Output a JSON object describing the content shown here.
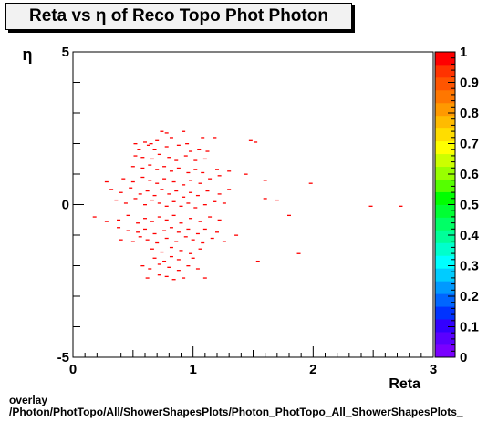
{
  "chart_data": {
    "type": "scatter",
    "title": "Reta vs  η of Reco Topo Phot Photon",
    "xlabel": "Reta",
    "ylabel": "η",
    "xlim": [
      0,
      3
    ],
    "ylim": [
      -5,
      5
    ],
    "x_ticks": [
      "0",
      "1",
      "2",
      "3"
    ],
    "y_ticks": [
      "-5",
      "0",
      "5"
    ],
    "colorbar": {
      "range": [
        0,
        1
      ],
      "ticks": [
        "0",
        "0.1",
        "0.2",
        "0.3",
        "0.4",
        "0.5",
        "0.6",
        "0.7",
        "0.8",
        "0.9",
        "1"
      ],
      "colors": [
        "#7a00ff",
        "#5a00ff",
        "#3300ff",
        "#0033ff",
        "#0066ff",
        "#0099ff",
        "#00ccff",
        "#00ffff",
        "#00ffcc",
        "#00ff99",
        "#00ff66",
        "#00ff33",
        "#00ff00",
        "#55ff00",
        "#99ff00",
        "#ccff00",
        "#ffff00",
        "#ffdd00",
        "#ffbb00",
        "#ff9900",
        "#ff7700",
        "#ff5500",
        "#ff3300",
        "#ff0000"
      ]
    },
    "point_color": "#ff0000",
    "points": [
      [
        0.52,
        2.0
      ],
      [
        0.6,
        2.05
      ],
      [
        0.65,
        2.0
      ],
      [
        0.7,
        2.1
      ],
      [
        0.74,
        2.4
      ],
      [
        0.78,
        2.35
      ],
      [
        0.82,
        2.2
      ],
      [
        0.92,
        2.4
      ],
      [
        0.95,
        2.0
      ],
      [
        1.08,
        2.2
      ],
      [
        1.18,
        2.2
      ],
      [
        1.48,
        2.1
      ],
      [
        1.52,
        2.05
      ],
      [
        0.55,
        1.8
      ],
      [
        0.63,
        1.95
      ],
      [
        0.68,
        1.8
      ],
      [
        0.78,
        1.9
      ],
      [
        0.88,
        1.95
      ],
      [
        0.98,
        1.75
      ],
      [
        1.05,
        1.8
      ],
      [
        1.12,
        1.75
      ],
      [
        0.52,
        1.6
      ],
      [
        0.58,
        1.55
      ],
      [
        0.66,
        1.5
      ],
      [
        0.72,
        1.65
      ],
      [
        0.8,
        1.55
      ],
      [
        0.86,
        1.45
      ],
      [
        0.94,
        1.6
      ],
      [
        1.02,
        1.45
      ],
      [
        1.1,
        1.5
      ],
      [
        0.5,
        1.25
      ],
      [
        0.58,
        1.2
      ],
      [
        0.64,
        1.3
      ],
      [
        0.7,
        1.15
      ],
      [
        0.76,
        1.25
      ],
      [
        0.82,
        1.1
      ],
      [
        0.88,
        1.2
      ],
      [
        0.96,
        1.05
      ],
      [
        1.02,
        1.15
      ],
      [
        1.08,
        1.05
      ],
      [
        1.2,
        1.15
      ],
      [
        1.3,
        1.1
      ],
      [
        0.42,
        0.85
      ],
      [
        0.5,
        0.75
      ],
      [
        0.58,
        0.9
      ],
      [
        0.64,
        0.8
      ],
      [
        0.7,
        0.7
      ],
      [
        0.76,
        0.85
      ],
      [
        0.84,
        0.75
      ],
      [
        0.92,
        0.65
      ],
      [
        0.98,
        0.8
      ],
      [
        1.06,
        0.7
      ],
      [
        1.14,
        0.85
      ],
      [
        1.22,
        0.95
      ],
      [
        1.44,
        1.0
      ],
      [
        1.6,
        0.8
      ],
      [
        1.98,
        0.7
      ],
      [
        0.28,
        0.75
      ],
      [
        0.32,
        0.5
      ],
      [
        0.4,
        0.4
      ],
      [
        0.48,
        0.55
      ],
      [
        0.56,
        0.35
      ],
      [
        0.62,
        0.45
      ],
      [
        0.68,
        0.3
      ],
      [
        0.74,
        0.5
      ],
      [
        0.8,
        0.35
      ],
      [
        0.86,
        0.45
      ],
      [
        0.92,
        0.25
      ],
      [
        0.98,
        0.4
      ],
      [
        1.04,
        0.3
      ],
      [
        1.12,
        0.45
      ],
      [
        1.22,
        0.35
      ],
      [
        1.3,
        0.5
      ],
      [
        0.36,
        0.15
      ],
      [
        0.44,
        0.05
      ],
      [
        0.52,
        0.2
      ],
      [
        0.6,
        0.0
      ],
      [
        0.66,
        0.15
      ],
      [
        0.72,
        0.05
      ],
      [
        0.78,
        -0.05
      ],
      [
        0.84,
        0.1
      ],
      [
        0.9,
        -0.05
      ],
      [
        0.96,
        0.05
      ],
      [
        1.02,
        -0.1
      ],
      [
        1.1,
        0.0
      ],
      [
        1.18,
        0.1
      ],
      [
        1.26,
        0.05
      ],
      [
        1.6,
        0.2
      ],
      [
        1.7,
        0.15
      ],
      [
        2.48,
        -0.05
      ],
      [
        2.73,
        -0.05
      ],
      [
        0.18,
        -0.4
      ],
      [
        0.28,
        -0.55
      ],
      [
        0.38,
        -0.5
      ],
      [
        0.46,
        -0.35
      ],
      [
        0.54,
        -0.6
      ],
      [
        0.6,
        -0.45
      ],
      [
        0.66,
        -0.55
      ],
      [
        0.72,
        -0.4
      ],
      [
        0.78,
        -0.5
      ],
      [
        0.84,
        -0.35
      ],
      [
        0.9,
        -0.6
      ],
      [
        0.98,
        -0.45
      ],
      [
        1.06,
        -0.55
      ],
      [
        1.14,
        -0.4
      ],
      [
        1.22,
        -0.5
      ],
      [
        1.8,
        -0.35
      ],
      [
        0.38,
        -0.75
      ],
      [
        0.46,
        -0.85
      ],
      [
        0.54,
        -0.9
      ],
      [
        0.6,
        -0.8
      ],
      [
        0.68,
        -0.95
      ],
      [
        0.76,
        -0.85
      ],
      [
        0.82,
        -0.75
      ],
      [
        0.88,
        -0.9
      ],
      [
        0.96,
        -0.8
      ],
      [
        1.04,
        -0.95
      ],
      [
        1.1,
        -0.8
      ],
      [
        1.2,
        -0.9
      ],
      [
        0.4,
        -1.15
      ],
      [
        0.5,
        -1.2
      ],
      [
        0.56,
        -1.05
      ],
      [
        0.62,
        -1.15
      ],
      [
        0.7,
        -1.25
      ],
      [
        0.78,
        -1.1
      ],
      [
        0.86,
        -1.2
      ],
      [
        0.94,
        -1.05
      ],
      [
        1.0,
        -1.15
      ],
      [
        1.08,
        -1.25
      ],
      [
        1.16,
        -1.1
      ],
      [
        1.26,
        -1.2
      ],
      [
        1.36,
        -1.0
      ],
      [
        0.66,
        -1.45
      ],
      [
        0.74,
        -1.55
      ],
      [
        0.82,
        -1.4
      ],
      [
        0.9,
        -1.5
      ],
      [
        0.98,
        -1.6
      ],
      [
        1.06,
        -1.45
      ],
      [
        0.68,
        -1.75
      ],
      [
        0.76,
        -1.85
      ],
      [
        0.82,
        -1.7
      ],
      [
        0.88,
        -1.8
      ],
      [
        1.0,
        -1.75
      ],
      [
        1.54,
        -1.85
      ],
      [
        1.88,
        -1.6
      ],
      [
        0.58,
        -2.0
      ],
      [
        0.64,
        -2.1
      ],
      [
        0.72,
        -1.95
      ],
      [
        0.8,
        -2.05
      ],
      [
        0.88,
        -2.15
      ],
      [
        0.96,
        -2.0
      ],
      [
        1.04,
        -2.1
      ],
      [
        0.62,
        -2.4
      ],
      [
        0.72,
        -2.3
      ],
      [
        0.78,
        -2.35
      ],
      [
        0.84,
        -2.45
      ],
      [
        0.92,
        -2.4
      ],
      [
        1.1,
        -2.4
      ]
    ]
  },
  "footer": {
    "line1": "overlay",
    "line2": "/Photon/PhotTopo/All/ShowerShapesPlots/Photon_PhotTopo_All_ShowerShapesPlots_"
  }
}
